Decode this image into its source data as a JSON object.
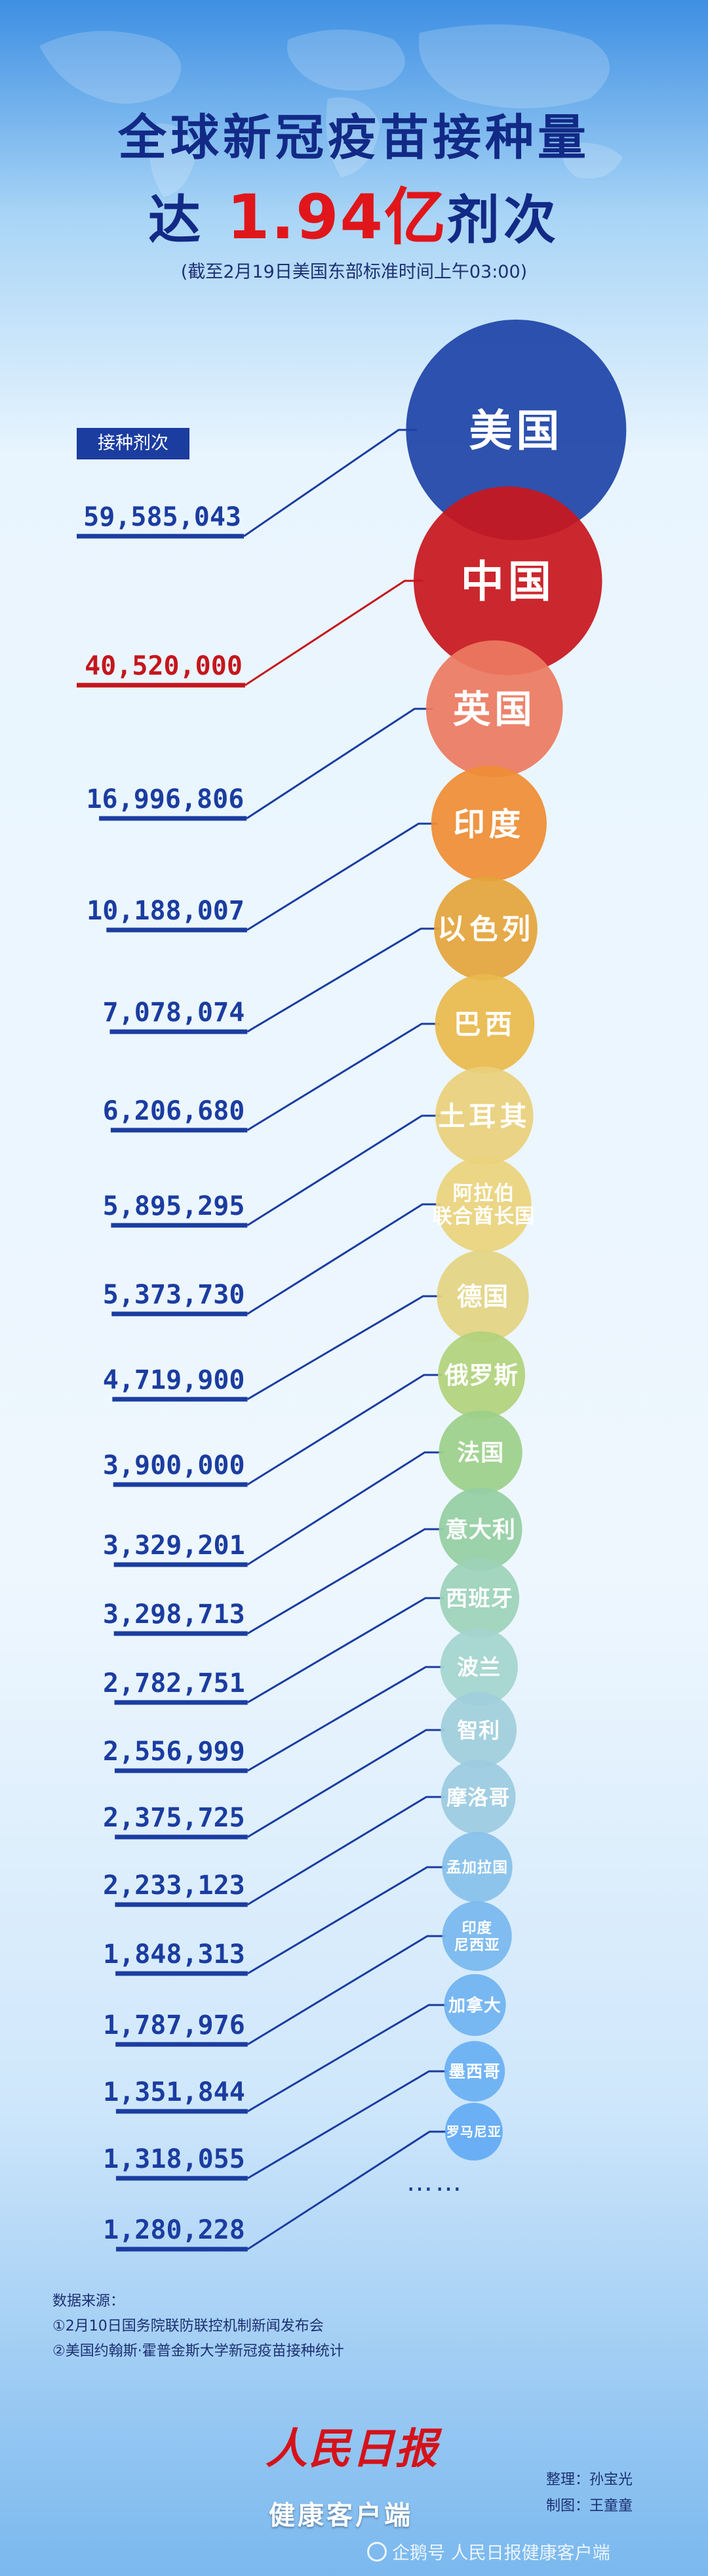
{
  "header": {
    "title_line1": "全球新冠疫苗接种量",
    "title_prefix": "达",
    "title_number": "1.94亿",
    "title_suffix": "剂次",
    "subtitle": "(截至2月19日美国东部标准时间上午03:00)"
  },
  "colors": {
    "title": "#122a86",
    "accent_red": "#e0161b",
    "bar_blue": "#1b3da0",
    "bar_red": "#c4161c"
  },
  "chart_data": {
    "type": "bar",
    "title": "全球新冠疫苗接种量达1.94亿剂次",
    "ylabel": "接种剂次",
    "categories": [
      "美国",
      "中国",
      "英国",
      "印度",
      "以色列",
      "巴西",
      "土耳其",
      "阿拉伯联合酋长国",
      "德国",
      "俄罗斯",
      "法国",
      "意大利",
      "西班牙",
      "波兰",
      "智利",
      "摩洛哥",
      "孟加拉国",
      "印度尼西亚",
      "加拿大",
      "墨西哥",
      "罗马尼亚"
    ],
    "values": [
      59585043,
      40520000,
      16996806,
      10188007,
      7078074,
      6206680,
      5895295,
      5373730,
      4719900,
      3900000,
      3329201,
      3298713,
      2782751,
      2556999,
      2375725,
      2233123,
      1848313,
      1787976,
      1351844,
      1318055,
      1280228
    ],
    "value_labels": [
      "59,585,043",
      "40,520,000",
      "16,996,806",
      "10,188,007",
      "7,078,074",
      "6,206,680",
      "5,895,295",
      "5,373,730",
      "4,719,900",
      "3,900,000",
      "3,329,201",
      "3,298,713",
      "2,782,751",
      "2,556,999",
      "2,375,725",
      "2,233,123",
      "1,848,313",
      "1,787,976",
      "1,351,844",
      "1,318,055",
      "1,280,228"
    ],
    "circle_labels": [
      [
        "美国"
      ],
      [
        "中国"
      ],
      [
        "英国"
      ],
      [
        "印度"
      ],
      [
        "以色列"
      ],
      [
        "巴西"
      ],
      [
        "土耳其"
      ],
      [
        "阿拉伯",
        "联合酋长国"
      ],
      [
        "德国"
      ],
      [
        "俄罗斯"
      ],
      [
        "法国"
      ],
      [
        "意大利"
      ],
      [
        "西班牙"
      ],
      [
        "波兰"
      ],
      [
        "智利"
      ],
      [
        "摩洛哥"
      ],
      [
        "孟加拉国"
      ],
      [
        "印度",
        "尼西亚"
      ],
      [
        "加拿大"
      ],
      [
        "墨西哥"
      ],
      [
        "罗马尼亚"
      ]
    ],
    "circle_colors": [
      "#1f45a8",
      "#c8171e",
      "#ec7a61",
      "#ef8d35",
      "#e4a43b",
      "#e9b94c",
      "#ead07b",
      "#ebd37d",
      "#e3d382",
      "#b1d27c",
      "#9cd08a",
      "#94cfa2",
      "#9dd2ba",
      "#a4d4cd",
      "#a0cfdb",
      "#9ccbe1",
      "#86c1ea",
      "#79b8ee",
      "#70b3f1",
      "#69aff3",
      "#63abf4"
    ],
    "highlight_index": 1,
    "more": "……"
  },
  "footer": {
    "source_title": "数据来源：",
    "sources": [
      "①2月10日国务院联防联控机制新闻发布会",
      "②美国约翰斯·霍普金斯大学新冠疫苗接种统计"
    ],
    "logo_main": "人民日报",
    "logo_sub": "健康客户端",
    "credit_editor": "整理：孙宝光",
    "credit_design": "制图：王童童",
    "watermark": "企鹅号 人民日报健康客户端"
  }
}
